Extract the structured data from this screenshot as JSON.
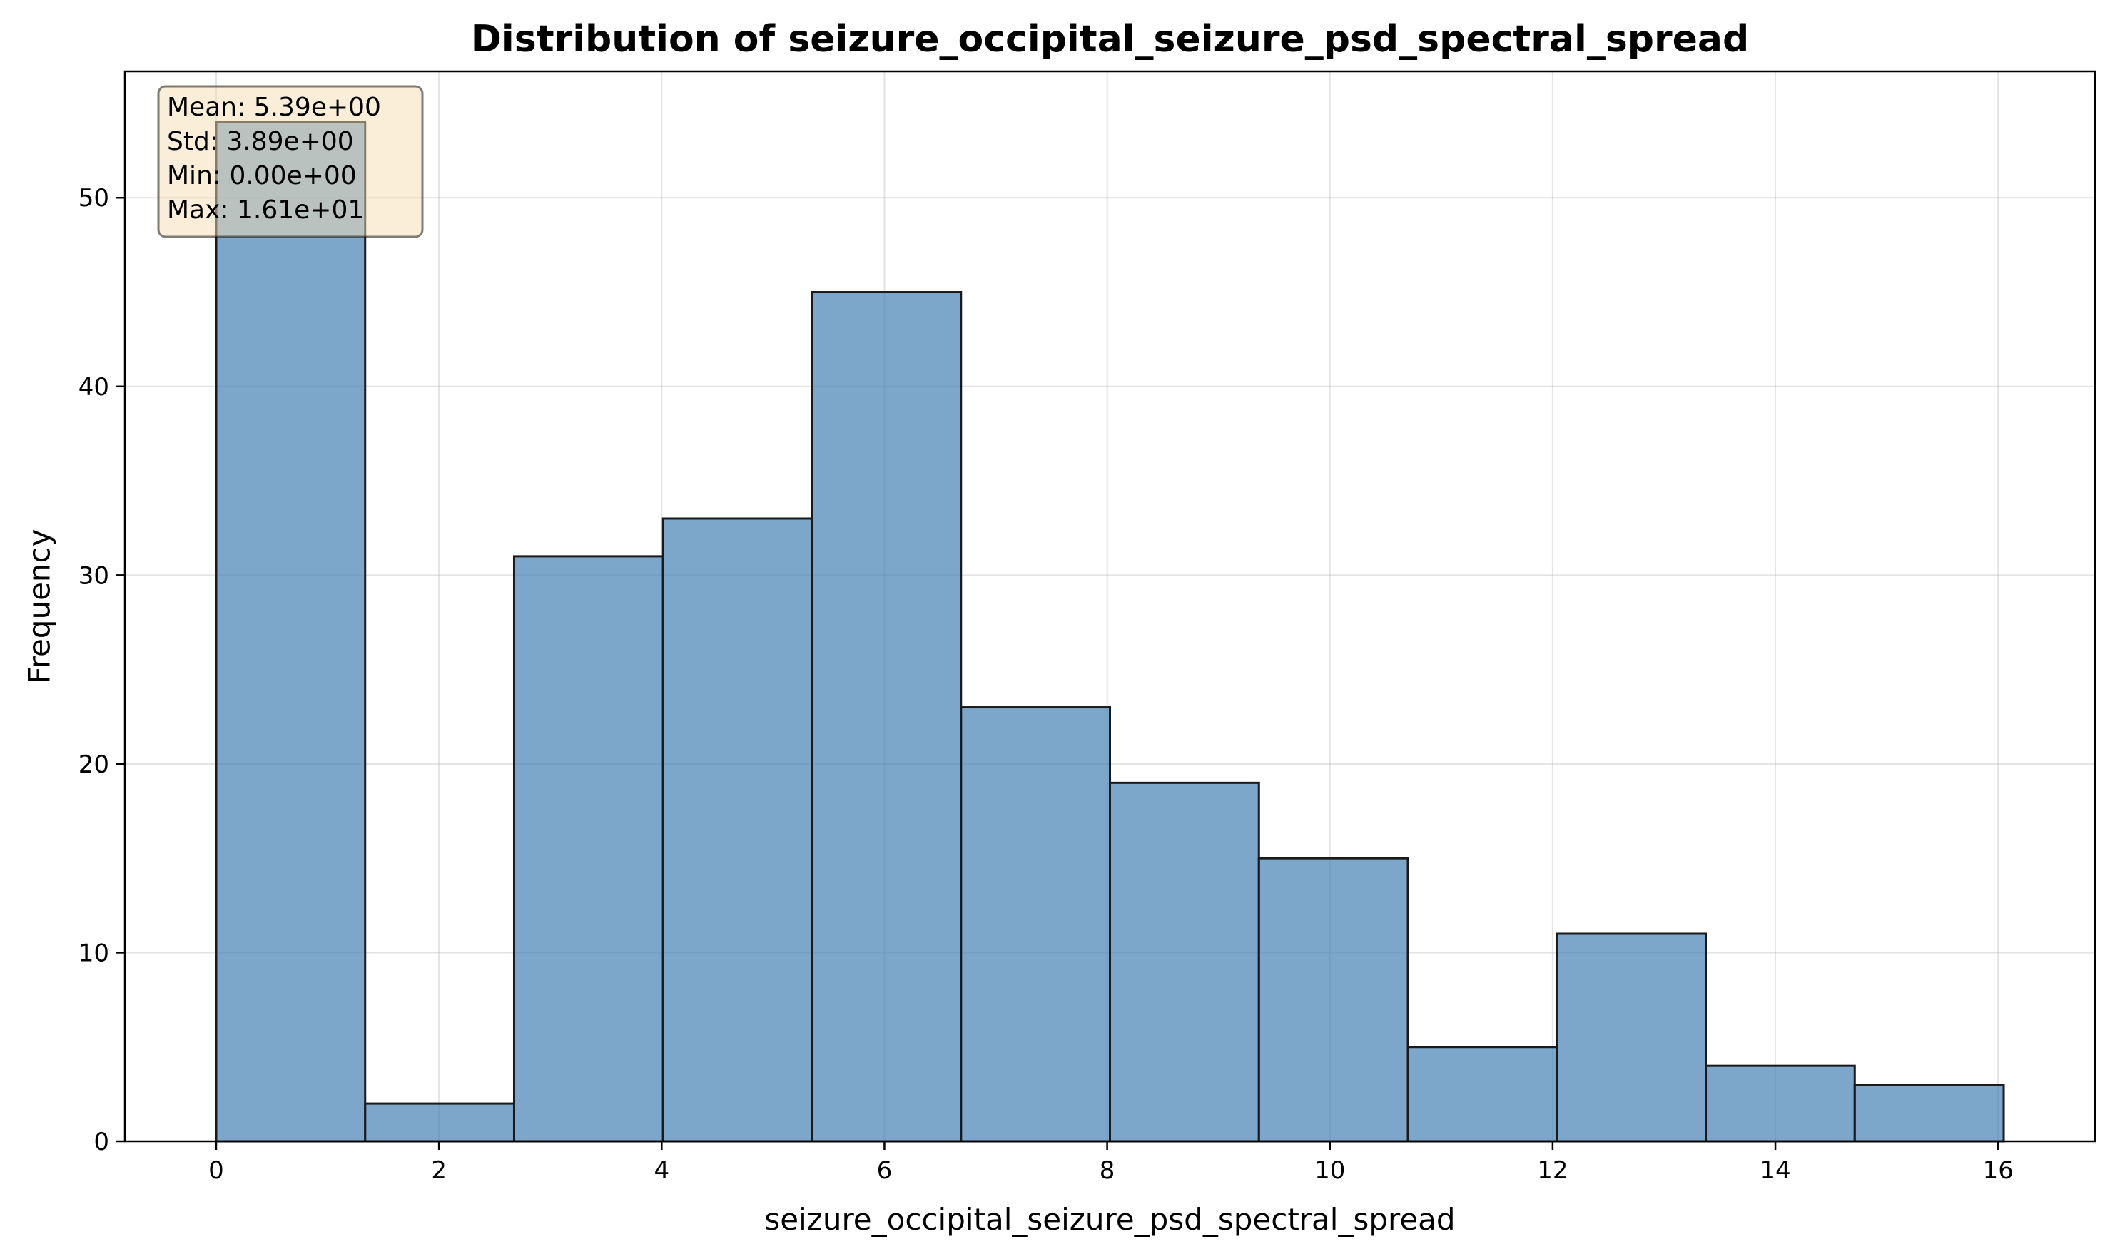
{
  "chart_data": {
    "type": "bar",
    "title": "Distribution of seizure_occipital_seizure_psd_spectral_spread",
    "xlabel": "seizure_occipital_seizure_psd_spectral_spread",
    "ylabel": "Frequency",
    "bin_edges": [
      0,
      1.3375,
      2.675,
      4.0125,
      5.35,
      6.6875,
      8.025,
      9.3625,
      10.7,
      12.0375,
      13.375,
      14.7125,
      16.05
    ],
    "values": [
      54,
      2,
      31,
      33,
      45,
      23,
      19,
      15,
      5,
      11,
      4,
      3
    ],
    "xlim": [
      -0.82,
      16.87
    ],
    "ylim": [
      0,
      56.7
    ],
    "xticks": [
      0,
      2,
      4,
      6,
      8,
      10,
      12,
      14,
      16
    ],
    "xtick_labels": [
      "0",
      "2",
      "4",
      "6",
      "8",
      "10",
      "12",
      "14",
      "16"
    ],
    "yticks": [
      0,
      10,
      20,
      30,
      40,
      50
    ],
    "ytick_labels": [
      "0",
      "10",
      "20",
      "30",
      "40",
      "50"
    ],
    "grid": true,
    "bar_color": "#4682b4",
    "bar_alpha": 0.7,
    "edge_color": "#1a1a1a",
    "stats_box": {
      "lines": [
        "Mean: 5.39e+00",
        "Std: 3.89e+00",
        "Min: 0.00e+00",
        "Max: 1.61e+01"
      ],
      "placement": "top-left",
      "facecolor": "#f5deb3"
    }
  }
}
